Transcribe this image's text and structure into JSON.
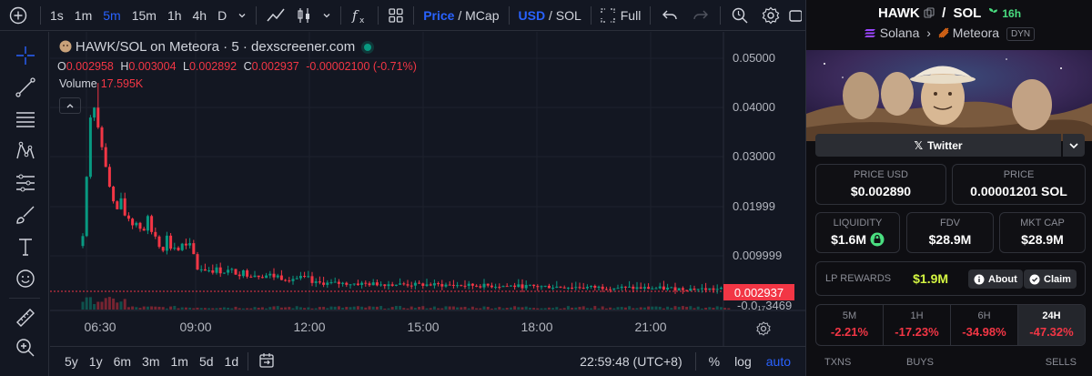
{
  "toolbar": {
    "intervals": [
      "1s",
      "1m",
      "5m",
      "15m",
      "1h",
      "4h",
      "D"
    ],
    "active_interval": "5m",
    "price_label": "Price",
    "mcap_label": "MCap",
    "usd_label": "USD",
    "sol_label": "SOL",
    "full_label": "Full"
  },
  "chart": {
    "title": "HAWK/SOL on Meteora · 5 · dexscreener.com",
    "ohlc": {
      "o_label": "O",
      "o": "0.002958",
      "h_label": "H",
      "h": "0.003004",
      "l_label": "L",
      "l": "0.002892",
      "c_label": "C",
      "c": "0.002937",
      "change": "-0.00002100 (-0.71%)"
    },
    "volume_label": "Volume",
    "volume_value": "17.595K",
    "last_price": "0.002937",
    "y_ticks": [
      "0.05000",
      "0.04000",
      "0.03000",
      "0.01999",
      "0.009999",
      "-0.0₁₇3469"
    ],
    "x_ticks": [
      "06:30",
      "09:00",
      "12:00",
      "15:00",
      "18:00",
      "21:00"
    ]
  },
  "bottombar": {
    "ranges": [
      "5y",
      "1y",
      "6m",
      "3m",
      "1m",
      "5d",
      "1d"
    ],
    "clock": "22:59:48 (UTC+8)",
    "pct_label": "%",
    "log_label": "log",
    "auto_label": "auto"
  },
  "panel": {
    "token": "HAWK",
    "sep": "/",
    "quote": "SOL",
    "age": "16h",
    "chain": "Solana",
    "dex": "Meteora",
    "dex_tag": "DYN",
    "twitter_label": "Twitter",
    "price_usd_label": "PRICE USD",
    "price_usd": "$0.002890",
    "price_label": "PRICE",
    "price_sol": "0.00001201 SOL",
    "liquidity_label": "LIQUIDITY",
    "liquidity": "$1.6M",
    "fdv_label": "FDV",
    "fdv": "$28.9M",
    "mktcap_label": "MKT CAP",
    "mktcap": "$28.9M",
    "lp_rewards_label": "LP REWARDS",
    "lp_rewards": "$1.9M",
    "about_label": "About",
    "claim_label": "Claim",
    "timeframes": [
      {
        "label": "5M",
        "change": "-2.21%"
      },
      {
        "label": "1H",
        "change": "-17.23%"
      },
      {
        "label": "6H",
        "change": "-34.98%"
      },
      {
        "label": "24H",
        "change": "-47.32%"
      }
    ],
    "txns_label": "TXNS",
    "buys_label": "BUYS",
    "sells_label": "SELLS"
  },
  "colors": {
    "up": "#089981",
    "down": "#f23645",
    "accent": "#2962ff",
    "background": "#131722"
  }
}
